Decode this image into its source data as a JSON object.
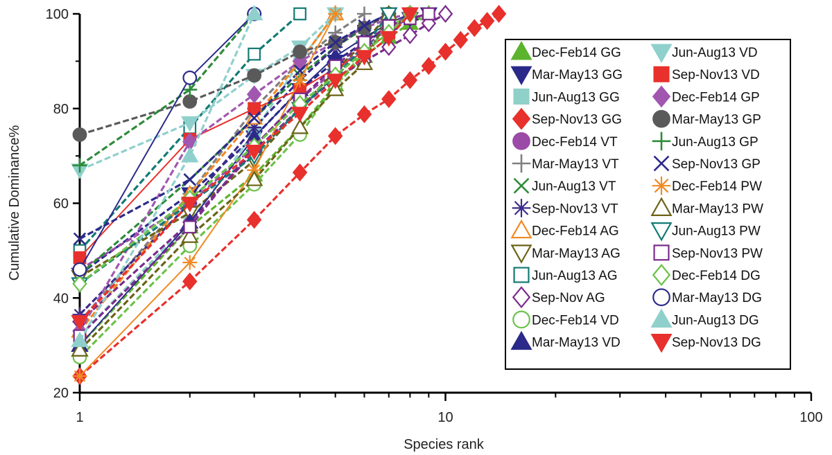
{
  "chart_data": {
    "type": "line",
    "title": "",
    "xlabel": "Species rank",
    "ylabel": "Cumulative Dominance%",
    "x_scale": "log",
    "xlim": [
      1,
      100
    ],
    "ylim": [
      20,
      100
    ],
    "x_ticks": [
      1,
      10,
      100
    ],
    "x_tick_labels": [
      "1",
      "10",
      "100"
    ],
    "y_ticks": [
      20,
      40,
      60,
      80,
      100
    ],
    "y_tick_labels": [
      "20",
      "40",
      "60",
      "80",
      "100"
    ],
    "grid": false,
    "legend_position": "right",
    "series": [
      {
        "name": "Dec-Feb14 GG",
        "color": "#5cb32e",
        "marker": "triangle-up",
        "filled": true,
        "dash": true,
        "x": [
          1,
          2,
          3,
          4,
          5,
          6,
          7,
          8,
          9
        ],
        "y": [
          30,
          55,
          66,
          76,
          85,
          91,
          95,
          98,
          100
        ]
      },
      {
        "name": "Mar-May13 GG",
        "color": "#2b2a8a",
        "marker": "triangle-down",
        "filled": true,
        "dash": true,
        "x": [
          1,
          2,
          3,
          4,
          5,
          6,
          7,
          8,
          9
        ],
        "y": [
          45,
          62,
          74,
          84,
          90,
          94,
          97,
          99,
          100
        ]
      },
      {
        "name": "Jun-Aug13 GG",
        "color": "#8fd0c8",
        "marker": "square",
        "filled": true,
        "dash": true,
        "x": [
          1,
          2,
          3,
          4,
          5
        ],
        "y": [
          32,
          56,
          75,
          90,
          100
        ]
      },
      {
        "name": "Sep-Nov13 GG",
        "color": "#e8302c",
        "marker": "diamond",
        "filled": true,
        "dash": true,
        "x": [
          1,
          2,
          3,
          4,
          5,
          6,
          7,
          8,
          9,
          10,
          11,
          12,
          13,
          14
        ],
        "y": [
          23.5,
          43.5,
          56.5,
          66.5,
          74.2,
          78.8,
          82,
          86,
          89,
          92,
          94.5,
          97,
          98.5,
          100
        ]
      },
      {
        "name": "Dec-Feb14 VT",
        "color": "#9b4aa8",
        "marker": "circle",
        "filled": true,
        "dash": true,
        "x": [
          1,
          2,
          3,
          4,
          5,
          6,
          7,
          8
        ],
        "y": [
          46,
          60,
          72,
          82,
          88,
          93,
          97,
          100
        ]
      },
      {
        "name": "Mar-May13 VT",
        "color": "#808080",
        "marker": "plus",
        "filled": false,
        "dash": true,
        "x": [
          1,
          2,
          3,
          4,
          5,
          6
        ],
        "y": [
          35,
          62,
          80,
          90,
          96,
          100
        ]
      },
      {
        "name": "Jun-Aug13 VT",
        "color": "#2e8b3a",
        "marker": "x",
        "filled": false,
        "dash": true,
        "x": [
          1,
          2,
          3,
          4,
          5,
          6,
          7
        ],
        "y": [
          45,
          65,
          78,
          87,
          93,
          97,
          100
        ]
      },
      {
        "name": "Sep-Nov13 VT",
        "color": "#3b2a8c",
        "marker": "asterisk",
        "filled": false,
        "dash": true,
        "x": [
          1,
          2,
          3,
          4,
          5,
          6,
          7
        ],
        "y": [
          36.5,
          60,
          76,
          86,
          93,
          97.5,
          100
        ]
      },
      {
        "name": "Dec-Feb14 AG",
        "color": "#f08a24",
        "marker": "triangle-up",
        "filled": false,
        "dash": true,
        "x": [
          1,
          2,
          3,
          4,
          5
        ],
        "y": [
          33,
          62,
          78,
          90,
          100
        ]
      },
      {
        "name": "Mar-May13 AG",
        "color": "#6b6317",
        "marker": "triangle-down",
        "filled": false,
        "dash": true,
        "x": [
          1,
          2,
          3,
          4,
          5,
          6,
          7
        ],
        "y": [
          44.5,
          58,
          69,
          80,
          88,
          94,
          100
        ]
      },
      {
        "name": "Jun-Aug13 AG",
        "color": "#137a74",
        "marker": "square",
        "filled": false,
        "dash": true,
        "x": [
          1,
          2,
          3,
          4
        ],
        "y": [
          50,
          76,
          91.5,
          100
        ]
      },
      {
        "name": "Sep-Nov AG",
        "color": "#7a2b8c",
        "marker": "diamond",
        "filled": false,
        "dash": true,
        "x": [
          1,
          2,
          3,
          4,
          5,
          6,
          7,
          8,
          9,
          10
        ],
        "y": [
          35,
          56,
          71,
          80,
          86.5,
          90,
          93,
          95.5,
          98,
          100
        ]
      },
      {
        "name": "Dec-Feb14 VD",
        "color": "#6cc24a",
        "marker": "circle",
        "filled": false,
        "dash": true,
        "x": [
          1,
          2,
          3,
          4,
          5,
          6,
          7,
          8
        ],
        "y": [
          27.5,
          51,
          64,
          74.5,
          85,
          92,
          97,
          100
        ]
      },
      {
        "name": "Mar-May13 VD",
        "color": "#2b2a8a",
        "marker": "triangle-up",
        "filled": true,
        "dash": false,
        "x": [
          1,
          2,
          3,
          4,
          5,
          6,
          7,
          8
        ],
        "y": [
          30,
          56,
          74,
          84,
          91,
          95,
          98,
          100
        ]
      },
      {
        "name": "Jun-Aug13 VD",
        "color": "#8fd0cc",
        "marker": "triangle-down",
        "filled": true,
        "dash": true,
        "x": [
          1,
          2,
          3,
          4,
          5
        ],
        "y": [
          67,
          77,
          87,
          93,
          100
        ]
      },
      {
        "name": "Sep-Nov13 VD",
        "color": "#e8302c",
        "marker": "square",
        "filled": true,
        "dash": false,
        "x": [
          1,
          2,
          3,
          4,
          5,
          6,
          7,
          8
        ],
        "y": [
          48.5,
          73.5,
          80,
          84,
          88.5,
          92,
          96,
          100
        ]
      },
      {
        "name": "Dec-Feb14 GP",
        "color": "#a157b0",
        "marker": "diamond",
        "filled": true,
        "dash": true,
        "x": [
          1,
          2,
          3,
          4,
          5,
          6,
          7,
          8
        ],
        "y": [
          33,
          73,
          83,
          90,
          94,
          97,
          99,
          100
        ]
      },
      {
        "name": "Mar-May13 GP",
        "color": "#5a5a5a",
        "marker": "circle",
        "filled": true,
        "dash": true,
        "x": [
          1,
          2,
          3,
          4,
          5,
          6,
          7
        ],
        "y": [
          74.5,
          81.5,
          87,
          92,
          94,
          97,
          100
        ]
      },
      {
        "name": "Jun-Aug13 GP",
        "color": "#2e8b3a",
        "marker": "plus",
        "filled": false,
        "dash": true,
        "x": [
          1,
          2,
          3
        ],
        "y": [
          68,
          84,
          100
        ]
      },
      {
        "name": "Sep-Nov13 GP",
        "color": "#2b2a8a",
        "marker": "x",
        "filled": false,
        "dash": true,
        "x": [
          1,
          2,
          3,
          4,
          5,
          6,
          7
        ],
        "y": [
          52.5,
          65,
          78,
          88,
          94,
          97.5,
          100
        ]
      },
      {
        "name": "Dec-Feb14 PW",
        "color": "#f08a24",
        "marker": "asterisk",
        "filled": false,
        "dash": false,
        "x": [
          1,
          2,
          3,
          4,
          5
        ],
        "y": [
          23.5,
          47.5,
          67,
          86,
          100
        ]
      },
      {
        "name": "Mar-May13 PW",
        "color": "#6b6317",
        "marker": "triangle-up",
        "filled": false,
        "dash": true,
        "x": [
          1,
          2,
          3,
          4,
          5,
          6,
          7
        ],
        "y": [
          29,
          53,
          65,
          76,
          84,
          89.5,
          100
        ]
      },
      {
        "name": "Jun-Aug13 PW",
        "color": "#137a74",
        "marker": "triangle-down",
        "filled": false,
        "dash": true,
        "x": [
          1,
          2,
          3,
          4,
          5,
          6,
          7
        ],
        "y": [
          43,
          60,
          70,
          80,
          87,
          93,
          100
        ]
      },
      {
        "name": "Sep-Nov13 PW",
        "color": "#7a2b8c",
        "marker": "square",
        "filled": false,
        "dash": true,
        "x": [
          1,
          2,
          3,
          4,
          5,
          6,
          7,
          8,
          9
        ],
        "y": [
          32,
          55,
          72,
          82,
          89,
          94,
          97.5,
          99,
          100
        ]
      },
      {
        "name": "Dec-Feb14 DG",
        "color": "#6cc24a",
        "marker": "diamond",
        "filled": false,
        "dash": true,
        "x": [
          1,
          2,
          3,
          4,
          5,
          6,
          7,
          8
        ],
        "y": [
          43,
          61,
          72,
          81,
          87,
          92,
          96,
          100
        ]
      },
      {
        "name": "Mar-May13 DG",
        "color": "#2b2a8a",
        "marker": "circle",
        "filled": false,
        "dash": false,
        "x": [
          1,
          2,
          3
        ],
        "y": [
          46,
          86.5,
          100
        ]
      },
      {
        "name": "Jun-Aug13 DG",
        "color": "#8fd0cc",
        "marker": "triangle-up",
        "filled": true,
        "dash": true,
        "x": [
          1,
          2,
          3
        ],
        "y": [
          31,
          70,
          100
        ]
      },
      {
        "name": "Sep-Nov13 DG",
        "color": "#e8302c",
        "marker": "triangle-down",
        "filled": true,
        "dash": true,
        "x": [
          1,
          2,
          3,
          4,
          5,
          6,
          7,
          8
        ],
        "y": [
          35,
          60,
          71,
          79,
          86,
          91,
          95,
          100
        ]
      }
    ]
  }
}
